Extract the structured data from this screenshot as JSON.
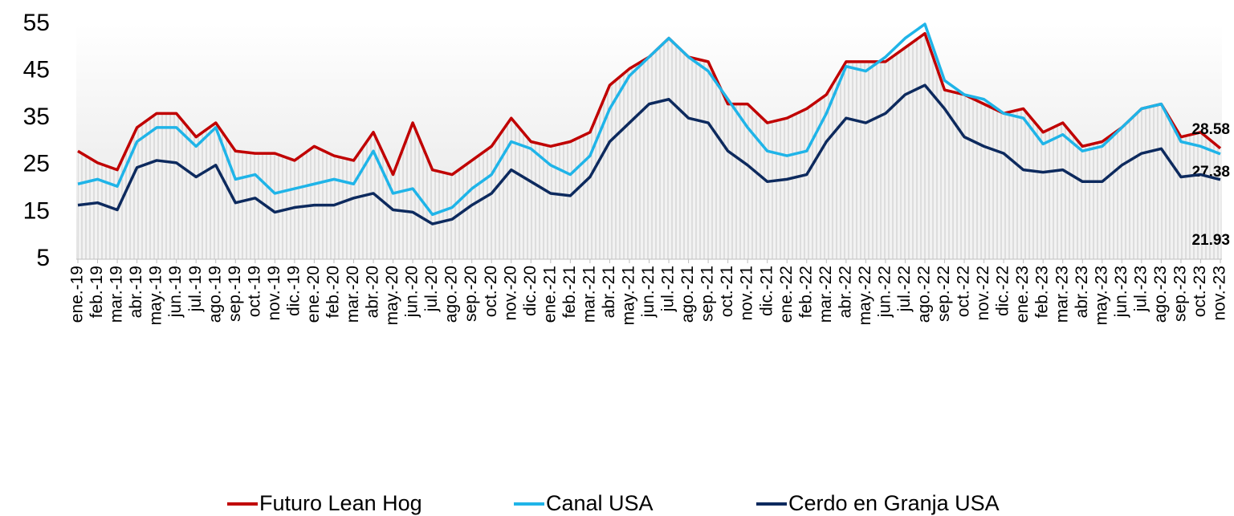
{
  "chart_data": {
    "type": "line",
    "categories": [
      "ene.-19",
      "feb.-19",
      "mar.-19",
      "abr.-19",
      "may.-19",
      "jun.-19",
      "jul.-19",
      "ago.-19",
      "sep.-19",
      "oct.-19",
      "nov.-19",
      "dic.-19",
      "ene.-20",
      "feb.-20",
      "mar.-20",
      "abr.-20",
      "may.-20",
      "jun.-20",
      "jul.-20",
      "ago.-20",
      "sep.-20",
      "oct.-20",
      "nov.-20",
      "dic.-20",
      "ene.-21",
      "feb.-21",
      "mar.-21",
      "abr.-21",
      "may.-21",
      "jun.-21",
      "jul.-21",
      "ago.-21",
      "sep.-21",
      "oct.-21",
      "nov.-21",
      "dic.-21",
      "ene.-22",
      "feb.-22",
      "mar.-22",
      "abr.-22",
      "may.-22",
      "jun.-22",
      "jul.-22",
      "ago.-22",
      "sep.-22",
      "oct.-22",
      "nov.-22",
      "dic.-22",
      "ene.-23",
      "feb.-23",
      "mar.-23",
      "abr.-23",
      "may.-23",
      "jun.-23",
      "jul.-23",
      "ago.-23",
      "sep.-23",
      "oct.-23",
      "nov.-23"
    ],
    "series": [
      {
        "name": "Futuro Lean Hog",
        "color": "#c00000",
        "values": [
          28,
          25.5,
          24,
          33,
          36,
          36,
          31,
          34,
          28,
          27.5,
          27.5,
          26,
          29,
          27,
          26,
          32,
          23,
          34,
          24,
          23,
          26,
          29,
          35,
          30,
          29,
          30,
          32,
          42,
          45.5,
          48,
          52,
          48,
          47,
          38,
          38,
          34,
          35,
          37,
          40,
          47,
          47,
          47,
          50,
          53,
          41,
          40,
          38,
          36,
          37,
          32,
          34,
          29,
          30,
          33,
          37,
          38,
          31,
          32,
          28.58
        ]
      },
      {
        "name": "Canal USA",
        "color": "#1fb4e8",
        "values": [
          21,
          22,
          20.5,
          30,
          33,
          33,
          29,
          33,
          22,
          23,
          19,
          20,
          21,
          22,
          21,
          28,
          19,
          20,
          14.5,
          16,
          20,
          23,
          30,
          28.5,
          25,
          23,
          27,
          37,
          44,
          48,
          52,
          48,
          45,
          39,
          33,
          28,
          27,
          28,
          36,
          46,
          45,
          48,
          52,
          55,
          43,
          40,
          39,
          36,
          35,
          29.5,
          31.5,
          28,
          29,
          33,
          37,
          38,
          30,
          29,
          27.38
        ]
      },
      {
        "name": "Cerdo en Granja USA",
        "color": "#0d2a5e",
        "values": [
          16.5,
          17,
          15.5,
          24.5,
          26,
          25.5,
          22.5,
          25,
          17,
          18,
          15,
          16,
          16.5,
          16.5,
          18,
          19,
          15.5,
          15,
          12.5,
          13.5,
          16.5,
          19,
          24,
          21.5,
          19,
          18.5,
          22.5,
          30,
          34,
          38,
          39,
          35,
          34,
          28,
          25,
          21.5,
          22,
          23,
          30,
          35,
          34,
          36,
          40,
          42,
          37,
          31,
          29,
          27.5,
          24,
          23.5,
          24,
          21.5,
          21.5,
          25,
          27.5,
          28.5,
          22.5,
          23,
          21.93
        ]
      }
    ],
    "ylim": [
      5,
      55
    ],
    "yticks": [
      5,
      15,
      25,
      35,
      45,
      55
    ],
    "legend": "bottom"
  }
}
